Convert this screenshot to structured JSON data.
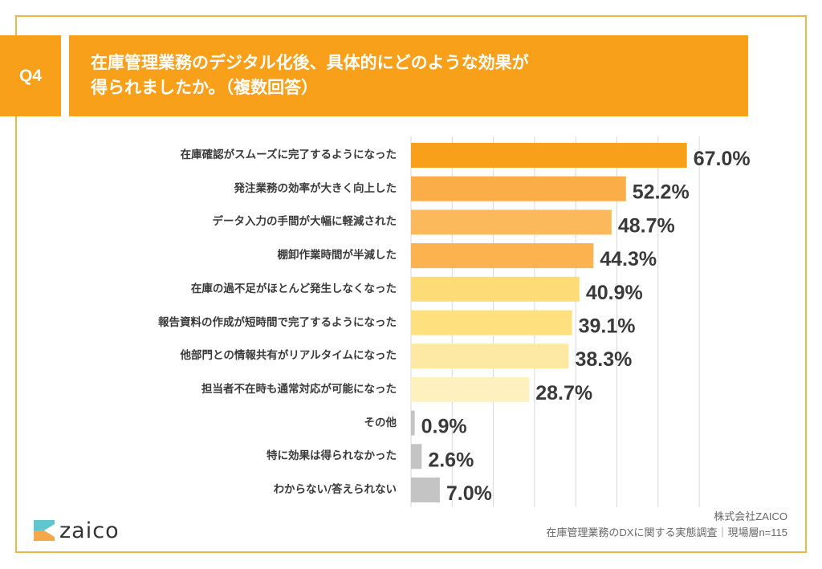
{
  "header": {
    "question_no": "Q4",
    "title_lines": [
      "在庫管理業務のデジタル化後、具体的にどのような効果が",
      "得られましたか。（複数回答）"
    ]
  },
  "colors": {
    "frame": "#f0b548",
    "header_bg": "#f9a01b",
    "bars": [
      "#f9a01b",
      "#fbae48",
      "#fcb95c",
      "#fcb24e",
      "#fddc77",
      "#fee07f",
      "#fee9a4",
      "#fff0c0",
      "#c4c4c4",
      "#c4c4c4",
      "#c4c4c4"
    ],
    "value_text": "#3a3a3a",
    "grid": "#d9d9d9"
  },
  "chart_data": {
    "type": "bar",
    "orientation": "horizontal",
    "title": "在庫管理業務のデジタル化後、具体的にどのような効果が得られましたか。（複数回答）",
    "categories": [
      "在庫確認がスムーズに完了するようになった",
      "発注業務の効率が大きく向上した",
      "データ入力の手間が大幅に軽減された",
      "棚卸作業時間が半減した",
      "在庫の過不足がほとんど発生しなくなった",
      "報告資料の作成が短時間で完了するようになった",
      "他部門との情報共有がリアルタイムになった",
      "担当者不在時も通常対応が可能になった",
      "その他",
      "特に効果は得られなかった",
      "わからない/答えられない"
    ],
    "values": [
      67.0,
      52.2,
      48.7,
      44.3,
      40.9,
      39.1,
      38.3,
      28.7,
      0.9,
      2.6,
      7.0
    ],
    "value_labels": [
      "67.0%",
      "52.2%",
      "48.7%",
      "44.3%",
      "40.9%",
      "39.1%",
      "38.3%",
      "28.7%",
      "0.9%",
      "2.6%",
      "7.0%"
    ],
    "xlim": [
      0,
      70
    ],
    "grid_step": 10,
    "grid": true,
    "xlabel": "",
    "ylabel": "",
    "unit": "%"
  },
  "footer": {
    "logo_text": "zaico",
    "company": "株式会社ZAICO",
    "source": "在庫管理業務のDXに関する実態調査｜現場層n=115"
  }
}
